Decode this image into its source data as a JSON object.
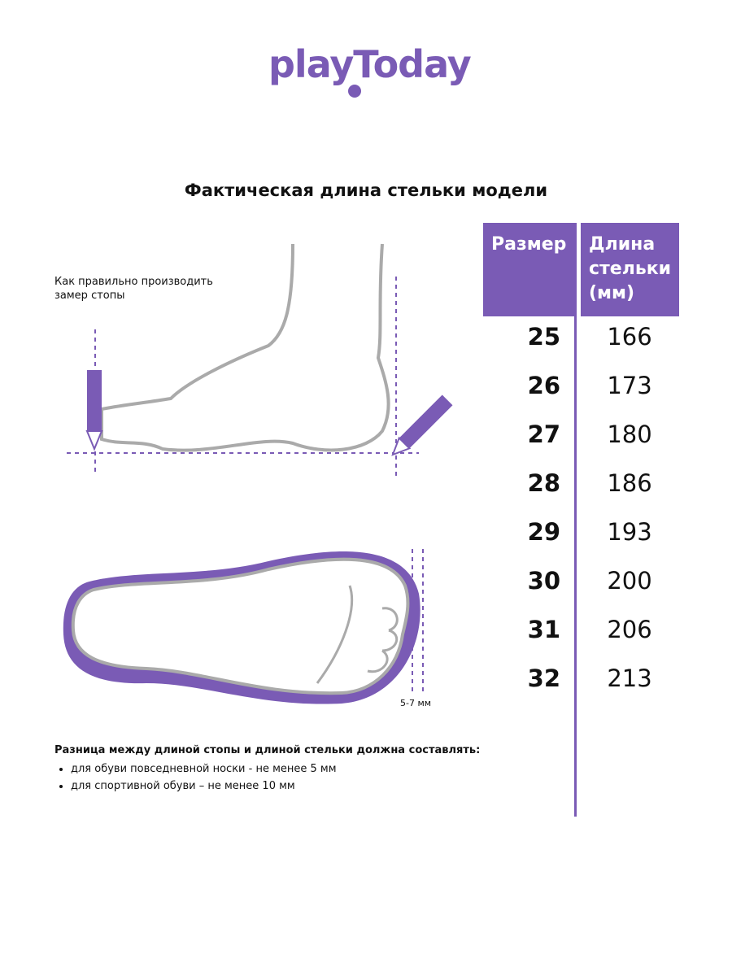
{
  "logo": {
    "text": "playToday",
    "color": "#7a5bb5"
  },
  "title": "Фактическая длина стельки модели",
  "measure_hint": [
    "Как правильно производить",
    "замер стопы"
  ],
  "gap_label": "5-7 мм",
  "table": {
    "headers": [
      "Размер",
      "Длина стельки (мм)"
    ],
    "rows": [
      {
        "size": "25",
        "length": "166"
      },
      {
        "size": "26",
        "length": "173"
      },
      {
        "size": "27",
        "length": "180"
      },
      {
        "size": "28",
        "length": "186"
      },
      {
        "size": "29",
        "length": "193"
      },
      {
        "size": "30",
        "length": "200"
      },
      {
        "size": "31",
        "length": "206"
      },
      {
        "size": "32",
        "length": "213"
      }
    ]
  },
  "note": {
    "heading": "Разница между длиной стопы и длиной стельки должна составлять:",
    "items": [
      "для обуви повседневной носки -  не менее 5 мм",
      "для спортивной обуви – не менее 10 мм"
    ]
  },
  "colors": {
    "accent": "#7a5bb5",
    "outline": "#aaaaaa"
  }
}
